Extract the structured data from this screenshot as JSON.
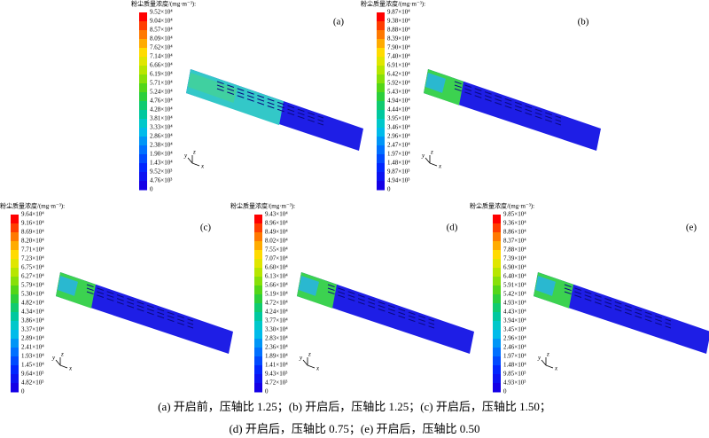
{
  "panels": [
    {
      "title": "粉尘质量浓度/(mg·m⁻³):",
      "label": "(a)",
      "ticks": [
        "9.52×10⁴",
        "9.04×10⁴",
        "8.57×10⁴",
        "8.09×10⁴",
        "7.62×10⁴",
        "7.14×10⁴",
        "6.66×10⁴",
        "6.19×10⁴",
        "5.71×10⁴",
        "5.24×10⁴",
        "4.76×10⁴",
        "4.28×10⁴",
        "3.81×10⁴",
        "3.33×10⁴",
        "2.86×10⁴",
        "2.38×10⁴",
        "1.90×10⁴",
        "1.43×10⁴",
        "9.52×10³",
        "4.76×10³",
        "0"
      ]
    },
    {
      "title": "粉尘质量浓度/(mg·m⁻³):",
      "label": "(b)",
      "ticks": [
        "9.87×10⁴",
        "9.38×10⁴",
        "8.88×10⁴",
        "8.39×10⁴",
        "7.90×10⁴",
        "7.40×10⁴",
        "6.91×10⁴",
        "6.42×10⁴",
        "5.92×10⁴",
        "5.43×10⁴",
        "4.94×10⁴",
        "4.44×10⁴",
        "3.95×10⁴",
        "3.46×10⁴",
        "2.96×10⁴",
        "2.47×10⁴",
        "1.97×10⁴",
        "1.48×10⁴",
        "9.87×10³",
        "4.94×10³",
        "0"
      ]
    },
    {
      "title": "粉尘质量浓度/(mg·m⁻³):",
      "label": "(c)",
      "ticks": [
        "9.64×10⁴",
        "9.16×10⁴",
        "8.69×10⁴",
        "8.20×10⁴",
        "7.71×10⁴",
        "7.23×10⁴",
        "6.75×10⁴",
        "6.27×10⁴",
        "5.79×10⁴",
        "5.30×10⁴",
        "4.82×10⁴",
        "4.34×10⁴",
        "3.86×10⁴",
        "3.37×10⁴",
        "2.89×10⁴",
        "2.41×10⁴",
        "1.93×10⁴",
        "1.45×10⁴",
        "9.64×10³",
        "4.82×10³",
        "0"
      ]
    },
    {
      "title": "粉尘质量浓度/(mg·m⁻³):",
      "label": "(d)",
      "ticks": [
        "9.43×10⁴",
        "8.96×10⁴",
        "8.49×10⁴",
        "8.02×10⁴",
        "7.55×10⁴",
        "7.07×10⁴",
        "6.60×10⁴",
        "6.13×10⁴",
        "5.66×10⁴",
        "5.19×10⁴",
        "4.72×10⁴",
        "4.24×10⁴",
        "3.77×10⁴",
        "3.30×10⁴",
        "2.83×10⁴",
        "2.36×10⁴",
        "1.89×10⁴",
        "1.41×10⁴",
        "9.43×10³",
        "4.72×10³",
        "0"
      ]
    },
    {
      "title": "粉尘质量浓度/(mg·m⁻³):",
      "label": "(e)",
      "ticks": [
        "9.85×10⁴",
        "9.36×10⁴",
        "8.86×10⁴",
        "8.37×10⁴",
        "7.88×10⁴",
        "7.39×10⁴",
        "6.90×10⁴",
        "6.40×10⁴",
        "5.91×10⁴",
        "5.42×10⁴",
        "4.93×10⁴",
        "4.43×10⁴",
        "3.94×10⁴",
        "3.45×10⁴",
        "2.96×10⁴",
        "2.46×10⁴",
        "1.97×10⁴",
        "1.48×10⁴",
        "9.85×10³",
        "4.93×10³",
        "0"
      ]
    }
  ],
  "triad": {
    "x": "x",
    "y": "y",
    "z": "z"
  },
  "caption": [
    "(a) 开启前，压轴比 1.25；(b) 开启后，压轴比 1.25；(c) 开启后，压轴比 1.50；",
    "(d) 开启后，压轴比 0.75；(e) 开启后，压轴比 0.50"
  ]
}
